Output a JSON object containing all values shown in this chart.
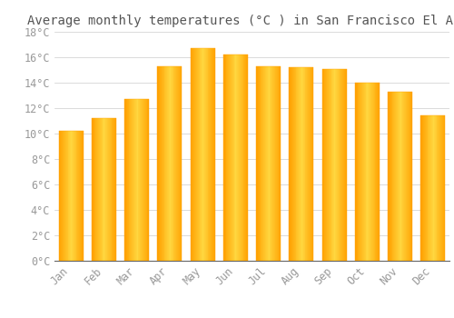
{
  "title": "Average monthly temperatures (°C ) in San Francisco El Alto",
  "months": [
    "Jan",
    "Feb",
    "Mar",
    "Apr",
    "May",
    "Jun",
    "Jul",
    "Aug",
    "Sep",
    "Oct",
    "Nov",
    "Dec"
  ],
  "values": [
    10.2,
    11.2,
    12.7,
    15.3,
    16.7,
    16.2,
    15.3,
    15.2,
    15.1,
    14.0,
    13.3,
    11.4
  ],
  "bar_color_center": "#FFD740",
  "bar_color_edge": "#FFA000",
  "ylim": [
    0,
    18
  ],
  "ytick_step": 2,
  "background_color": "#FFFFFF",
  "grid_color": "#CCCCCC",
  "title_fontsize": 10,
  "tick_fontsize": 8.5,
  "tick_color": "#999999",
  "font_family": "monospace"
}
